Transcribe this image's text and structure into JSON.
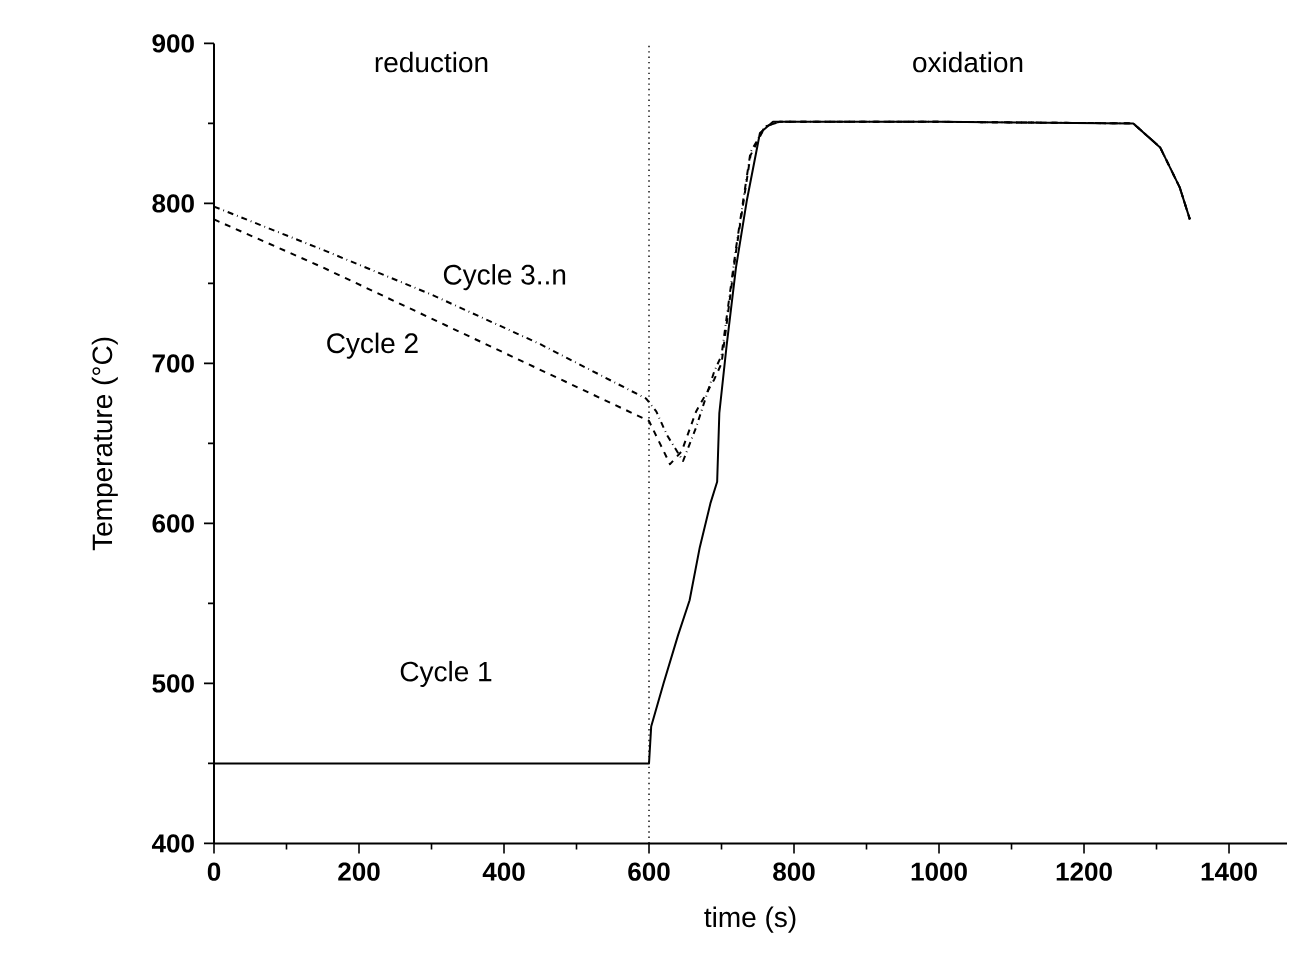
{
  "chart_data": {
    "type": "line",
    "xlabel": "time (s)",
    "ylabel": "Temperature (°C)",
    "xlim": [
      0,
      1480
    ],
    "ylim": [
      400,
      900
    ],
    "xticks": [
      0,
      200,
      400,
      600,
      800,
      1000,
      1200,
      1400
    ],
    "yticks": [
      400,
      500,
      600,
      700,
      800,
      900
    ],
    "legend": false,
    "grid": false,
    "marker": "none",
    "series": [
      {
        "name": "Cycle 1",
        "color": "#000000",
        "line_style": "solid",
        "x": [
          0,
          600,
          603,
          620,
          640,
          656,
          670,
          685,
          694,
          697,
          707,
          720,
          735,
          753,
          771,
          1000,
          1268,
          1305,
          1332,
          1346
        ],
        "values": [
          450,
          450,
          473,
          500,
          530,
          552,
          585,
          613,
          626,
          669,
          711,
          760,
          802,
          844,
          851,
          851,
          850,
          835,
          810,
          790
        ]
      },
      {
        "name": "Cycle 2",
        "color": "#000000",
        "line_style": "dashed",
        "x": [
          0,
          150,
          300,
          450,
          600,
          615,
          629,
          645,
          665,
          690,
          700,
          720,
          740,
          760,
          780,
          1000,
          1268,
          1305,
          1332,
          1346
        ],
        "values": [
          790,
          760,
          728,
          696,
          664,
          650,
          637,
          645,
          670,
          690,
          700,
          770,
          830,
          848,
          851,
          851,
          850,
          835,
          810,
          790
        ]
      },
      {
        "name": "Cycle 3..n",
        "color": "#000000",
        "line_style": "dashdotted",
        "x": [
          0,
          150,
          300,
          450,
          596,
          610,
          625,
          647,
          665,
          690,
          700,
          720,
          740,
          760,
          780,
          1000,
          1268,
          1305,
          1332,
          1346
        ],
        "values": [
          798,
          771,
          743,
          712,
          678,
          670,
          655,
          639,
          660,
          695,
          705,
          772,
          832,
          848,
          851,
          851,
          850,
          835,
          810,
          790
        ]
      }
    ],
    "ref_lines": [
      {
        "axis": "x",
        "value": 600,
        "line_style": "dotted",
        "color": "#000000"
      }
    ],
    "annotations": [
      "reduction",
      "oxidation"
    ]
  }
}
